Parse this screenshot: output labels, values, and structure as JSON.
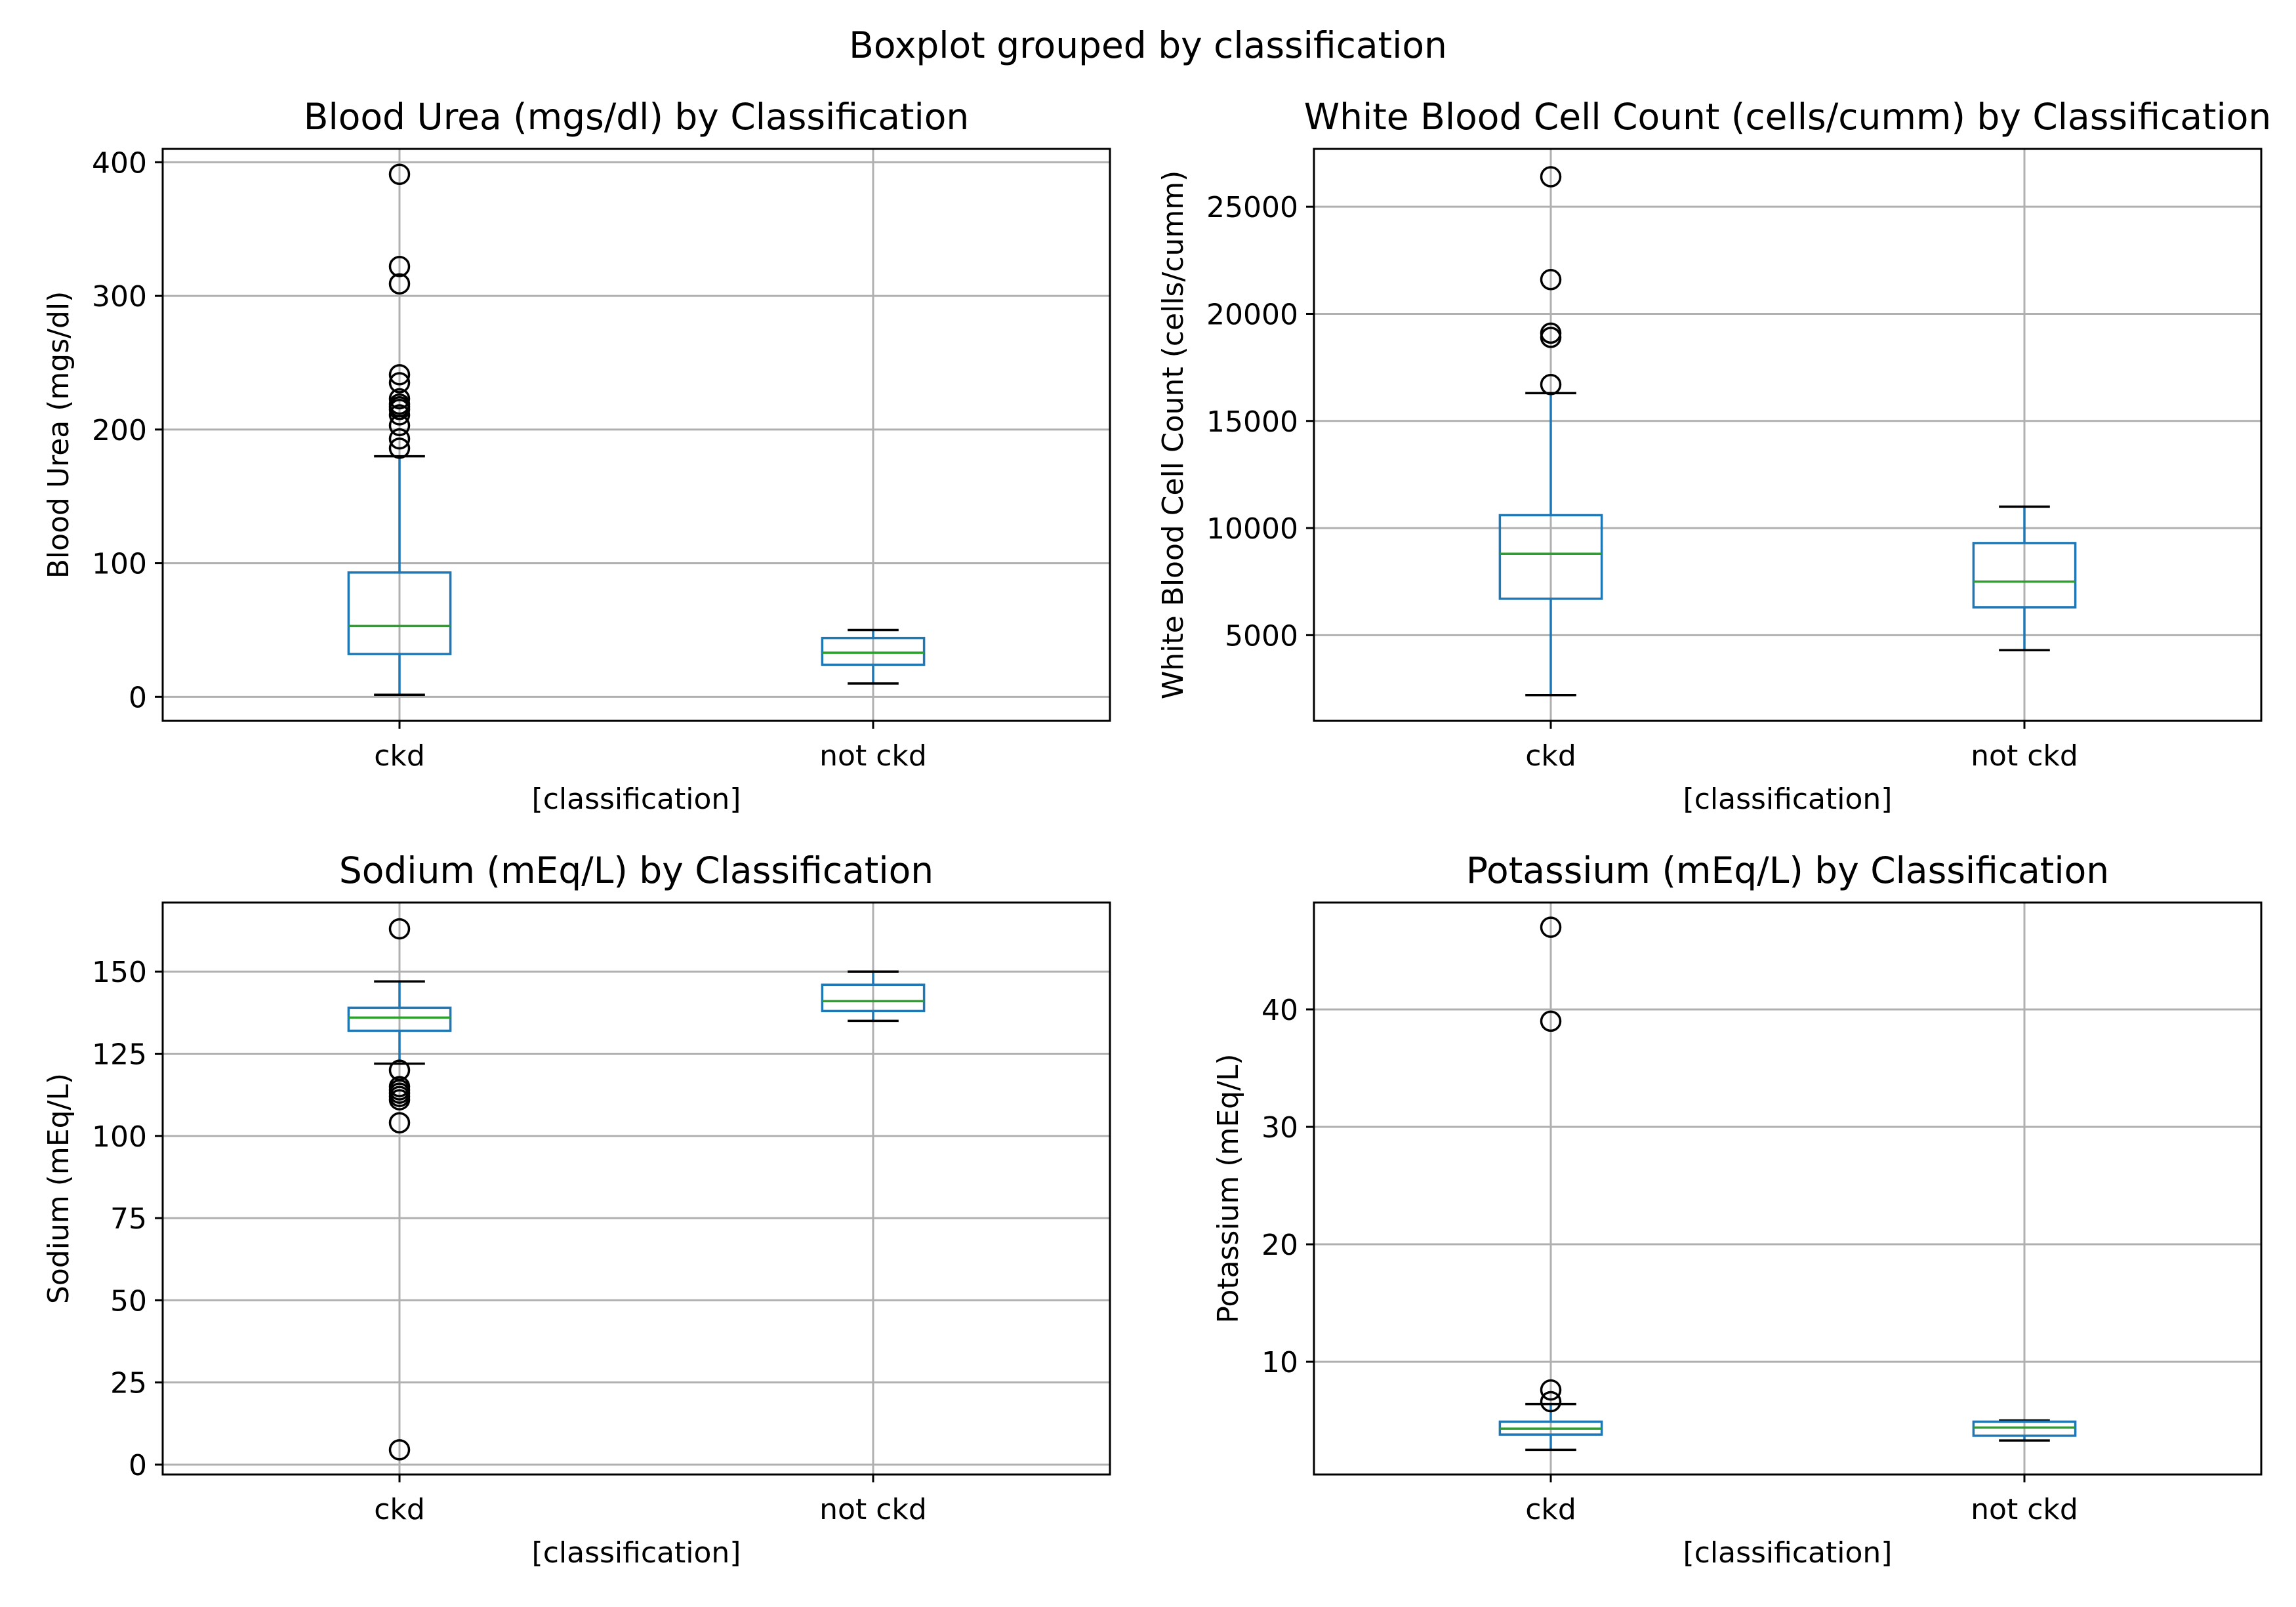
{
  "suptitle": "Boxplot grouped by classification",
  "colors": {
    "box": "#1f77b4",
    "median": "#2ca02c",
    "grid": "#b0b0b0",
    "outlier": "#000000"
  },
  "chart_data": [
    {
      "type": "box",
      "title": "Blood Urea (mgs/dl) by Classification",
      "xlabel": "[classification]",
      "ylabel": "Blood Urea (mgs/dl)",
      "categories": [
        "ckd",
        "not ckd"
      ],
      "ylim": [
        -18,
        410
      ],
      "yticks": [
        0,
        100,
        200,
        300,
        400
      ],
      "grid": true,
      "boxes": [
        {
          "category": "ckd",
          "whislo": 1.5,
          "q1": 32,
          "med": 53,
          "q3": 93,
          "whishi": 180,
          "fliers": [
            391,
            322,
            309,
            241,
            235,
            223,
            219,
            217,
            215,
            211,
            203,
            193,
            186
          ]
        },
        {
          "category": "not ckd",
          "whislo": 10,
          "q1": 24,
          "med": 33,
          "q3": 44,
          "whishi": 50,
          "fliers": []
        }
      ]
    },
    {
      "type": "box",
      "title": "White Blood Cell Count (cells/cumm) by Classification",
      "xlabel": "[classification]",
      "ylabel": "White Blood Cell Count (cells/cumm)",
      "categories": [
        "ckd",
        "not ckd"
      ],
      "ylim": [
        1000,
        27700
      ],
      "yticks": [
        5000,
        10000,
        15000,
        20000,
        25000
      ],
      "grid": true,
      "boxes": [
        {
          "category": "ckd",
          "whislo": 2200,
          "q1": 6700,
          "med": 8800,
          "q3": 10600,
          "whishi": 16300,
          "fliers": [
            26400,
            21600,
            19100,
            18900,
            16700
          ]
        },
        {
          "category": "not ckd",
          "whislo": 4300,
          "q1": 6300,
          "med": 7500,
          "q3": 9300,
          "whishi": 11000,
          "fliers": []
        }
      ]
    },
    {
      "type": "box",
      "title": "Sodium (mEq/L) by Classification",
      "xlabel": "[classification]",
      "ylabel": "Sodium (mEq/L)",
      "categories": [
        "ckd",
        "not ckd"
      ],
      "ylim": [
        -3,
        171
      ],
      "yticks": [
        0,
        25,
        50,
        75,
        100,
        125,
        150
      ],
      "grid": true,
      "boxes": [
        {
          "category": "ckd",
          "whislo": 122,
          "q1": 132,
          "med": 136,
          "q3": 139,
          "whishi": 147,
          "fliers": [
            163,
            120,
            115,
            114,
            113,
            112,
            111,
            104,
            4.5
          ]
        },
        {
          "category": "not ckd",
          "whislo": 135,
          "q1": 138,
          "med": 141,
          "q3": 146,
          "whishi": 150,
          "fliers": []
        }
      ]
    },
    {
      "type": "box",
      "title": "Potassium (mEq/L) by Classification",
      "xlabel": "[classification]",
      "ylabel": "Potassium (mEq/L)",
      "categories": [
        "ckd",
        "not ckd"
      ],
      "ylim": [
        0.4,
        49.1
      ],
      "yticks": [
        10,
        20,
        30,
        40
      ],
      "grid": true,
      "boxes": [
        {
          "category": "ckd",
          "whislo": 2.5,
          "q1": 3.8,
          "med": 4.3,
          "q3": 4.9,
          "whishi": 6.4,
          "fliers": [
            47,
            39,
            7.6,
            6.6
          ]
        },
        {
          "category": "not ckd",
          "whislo": 3.3,
          "q1": 3.7,
          "med": 4.4,
          "q3": 4.9,
          "whishi": 5.0,
          "fliers": []
        }
      ]
    }
  ]
}
